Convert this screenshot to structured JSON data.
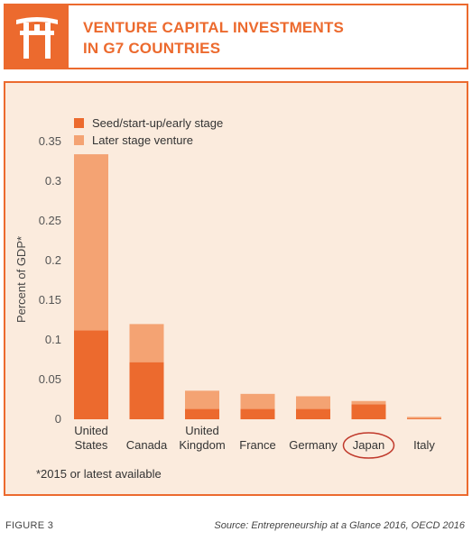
{
  "header": {
    "title_line1": "VENTURE CAPITAL INVESTMENTS",
    "title_line2": "IN G7 COUNTRIES",
    "logo_icon": "torii-gate-icon",
    "accent_color": "#EC6A2E"
  },
  "chart_data": {
    "type": "bar",
    "stacked": true,
    "categories": [
      [
        "United",
        "States"
      ],
      [
        "Canada"
      ],
      [
        "United",
        "Kingdom"
      ],
      [
        "France"
      ],
      [
        "Germany"
      ],
      [
        "Japan"
      ],
      [
        "Italy"
      ]
    ],
    "series": [
      {
        "name": "Seed/start-up/early stage",
        "color": "#EC6A2E",
        "values": [
          0.112,
          0.072,
          0.013,
          0.013,
          0.013,
          0.019,
          0.001
        ]
      },
      {
        "name": "Later stage venture",
        "color": "#F4A373",
        "values": [
          0.222,
          0.048,
          0.023,
          0.019,
          0.016,
          0.004,
          0.002
        ]
      }
    ],
    "ylabel": "Percent of GDP*",
    "ylim": [
      0,
      0.35
    ],
    "yticks": [
      "0.35",
      "0.3",
      "0.25",
      "0.2",
      "0.15",
      "0.1",
      "0.05",
      "0"
    ],
    "legend_position": "top-left",
    "grid": false,
    "highlighted_category": "Japan",
    "highlight_color": "#C0392B"
  },
  "footnote": "*2015 or latest available",
  "figure_label": "FIGURE 3",
  "source": "Source: Entrepreneurship at a Glance 2016, OECD 2016"
}
